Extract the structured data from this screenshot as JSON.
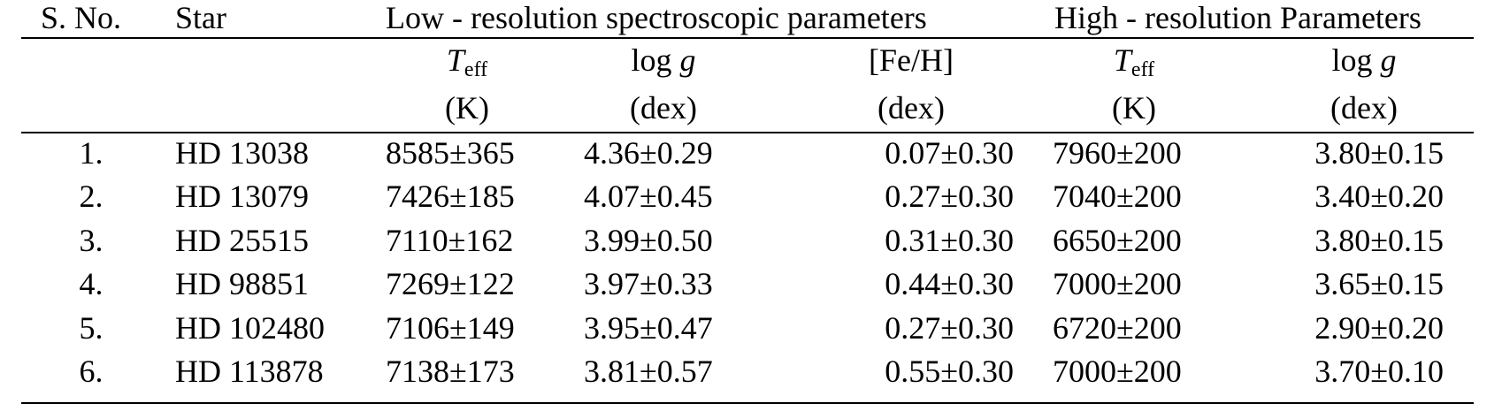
{
  "table": {
    "header_row1": {
      "sno": "S. No.",
      "star": "Star",
      "low_group": "Low - resolution spectroscopic parameters",
      "high_group": "High - resolution Parameters"
    },
    "header_row2": {
      "teff_symbol": "T",
      "teff_sub": "eff",
      "logg_prefix": "log ",
      "logg_var": "g",
      "feh": "[Fe/H]"
    },
    "header_row3": {
      "teff_unit": "(K)",
      "logg_unit": "(dex)",
      "feh_unit": "(dex)",
      "teff_high_unit": "(K)",
      "logg_high_unit": "(dex)"
    },
    "rows": [
      {
        "sno": "1.",
        "star": "HD 13038",
        "teff_low": "8585±365",
        "logg_low": "4.36±0.29",
        "feh": "0.07±0.30",
        "teff_high": "7960±200",
        "logg_high": "3.80±0.15"
      },
      {
        "sno": "2.",
        "star": "HD 13079",
        "teff_low": "7426±185",
        "logg_low": "4.07±0.45",
        "feh": "0.27±0.30",
        "teff_high": "7040±200",
        "logg_high": "3.40±0.20"
      },
      {
        "sno": "3.",
        "star": "HD 25515",
        "teff_low": "7110±162",
        "logg_low": "3.99±0.50",
        "feh": "0.31±0.30",
        "teff_high": "6650±200",
        "logg_high": "3.80±0.15"
      },
      {
        "sno": "4.",
        "star": "HD 98851",
        "teff_low": "7269±122",
        "logg_low": "3.97±0.33",
        "feh": "0.44±0.30",
        "teff_high": "7000±200",
        "logg_high": "3.65±0.15"
      },
      {
        "sno": "5.",
        "star": "HD 102480",
        "teff_low": "7106±149",
        "logg_low": "3.95±0.47",
        "feh": "0.27±0.30",
        "teff_high": "6720±200",
        "logg_high": "2.90±0.20"
      },
      {
        "sno": "6.",
        "star": "HD 113878",
        "teff_low": "7138±173",
        "logg_low": "3.81±0.57",
        "feh": "0.55±0.30",
        "teff_high": "7000±200",
        "logg_high": "3.70±0.10"
      }
    ]
  }
}
